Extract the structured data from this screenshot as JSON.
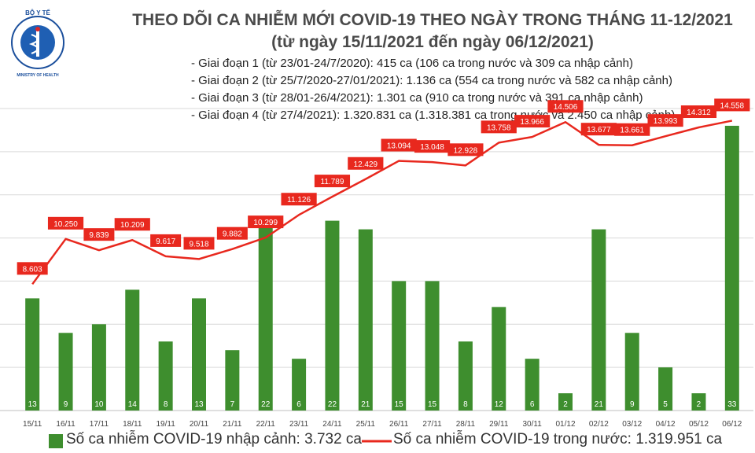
{
  "logo": {
    "top_text": "BỘ Y TẾ",
    "bottom_text": "MINISTRY OF HEALTH",
    "colors": {
      "ring": "#1b4f9c",
      "inner": "#1f5fb3",
      "accent": "#d9252a"
    }
  },
  "title": "THEO DÕI CA NHIỄM MỚI COVID-19 THEO NGÀY TRONG THÁNG 11-12/2021",
  "subtitle": "(từ ngày 15/11/2021 đến ngày 06/12/2021)",
  "phases": [
    "- Giai đoạn 1 (từ 23/01-24/7/2020): 415 ca (106 ca trong nước và 309 ca nhập cảnh)",
    "- Giai đoạn 2 (từ 25/7/2020-27/01/2021): 1.136 ca (554 ca trong nước và 582 ca nhập cảnh)",
    "- Giai đoạn 3 (từ 28/01-26/4/2021): 1.301 ca (910 ca trong nước và 391 ca nhập cảnh)",
    "- Giai đoạn 4 (từ 27/4/2021): 1.320.831 ca (1.318.381 ca trong nước và 2.450 ca nhập cảnh)"
  ],
  "legend": {
    "bar_label": "Số ca nhiễm COVID-19 nhập cảnh: 3.732 ca",
    "line_label": "Số ca nhiễm COVID-19 trong nước: 1.319.951 ca"
  },
  "chart_data": {
    "type": "bar+line",
    "categories": [
      "15/11",
      "16/11",
      "17/11",
      "18/11",
      "19/11",
      "20/11",
      "21/11",
      "22/11",
      "23/11",
      "24/11",
      "25/11",
      "26/11",
      "27/11",
      "28/11",
      "29/11",
      "30/11",
      "01/12",
      "02/12",
      "03/12",
      "04/12",
      "05/12",
      "06/12"
    ],
    "bar_series": {
      "name": "Số ca nhiễm COVID-19 nhập cảnh",
      "color": "#3e8e2e",
      "label_color": "#ffffff",
      "values": [
        13,
        9,
        10,
        14,
        8,
        13,
        7,
        22,
        6,
        22,
        21,
        15,
        15,
        8,
        12,
        6,
        2,
        21,
        9,
        5,
        2,
        33
      ]
    },
    "line_series": {
      "name": "Số ca nhiễm COVID-19 trong nước",
      "color": "#e8281e",
      "values": [
        8603,
        10250,
        9839,
        10209,
        9617,
        9518,
        9882,
        10299,
        11126,
        11789,
        12429,
        13094,
        13048,
        12928,
        13758,
        13966,
        14506,
        13677,
        13661,
        13993,
        14312,
        14558
      ]
    },
    "line_labels": [
      "8.603",
      "10.250",
      "9.839",
      "10.209",
      "9.617",
      "9.518",
      "9.882",
      "10.299",
      "11.126",
      "11.789",
      "12.429",
      "13.094",
      "13.048",
      "12.928",
      "13.758",
      "13.966",
      "14.506",
      "13.677",
      "13.661",
      "13.993",
      "14.312",
      "14.558"
    ],
    "bar_ylim": [
      0,
      35
    ],
    "line_ylim": [
      4000,
      15000
    ],
    "grid": true,
    "legend_position": "bottom"
  }
}
